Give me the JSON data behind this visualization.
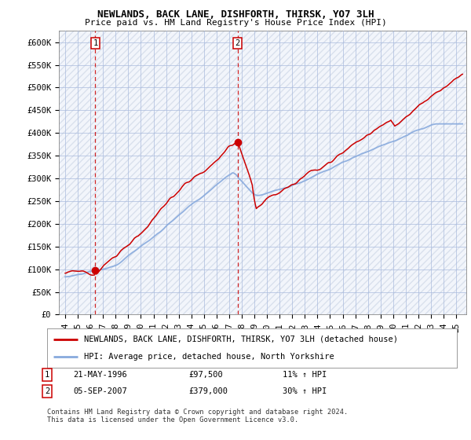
{
  "title1": "NEWLANDS, BACK LANE, DISHFORTH, THIRSK, YO7 3LH",
  "title2": "Price paid vs. HM Land Registry's House Price Index (HPI)",
  "ylabel_ticks": [
    "£0",
    "£50K",
    "£100K",
    "£150K",
    "£200K",
    "£250K",
    "£300K",
    "£350K",
    "£400K",
    "£450K",
    "£500K",
    "£550K",
    "£600K"
  ],
  "ytick_values": [
    0,
    50000,
    100000,
    150000,
    200000,
    250000,
    300000,
    350000,
    400000,
    450000,
    500000,
    550000,
    600000
  ],
  "xlim": [
    1993.5,
    2025.8
  ],
  "ylim": [
    0,
    625000
  ],
  "legend_line1": "NEWLANDS, BACK LANE, DISHFORTH, THIRSK, YO7 3LH (detached house)",
  "legend_line2": "HPI: Average price, detached house, North Yorkshire",
  "marker1_x": 1996.39,
  "marker1_y": 97500,
  "marker2_x": 2007.68,
  "marker2_y": 379000,
  "footnote": "Contains HM Land Registry data © Crown copyright and database right 2024.\nThis data is licensed under the Open Government Licence v3.0.",
  "background_color": "#e8eef8",
  "hatch_color": "#c8d0e0",
  "grid_color": "#aabbdd",
  "red_color": "#cc0000",
  "blue_color": "#88aadd"
}
